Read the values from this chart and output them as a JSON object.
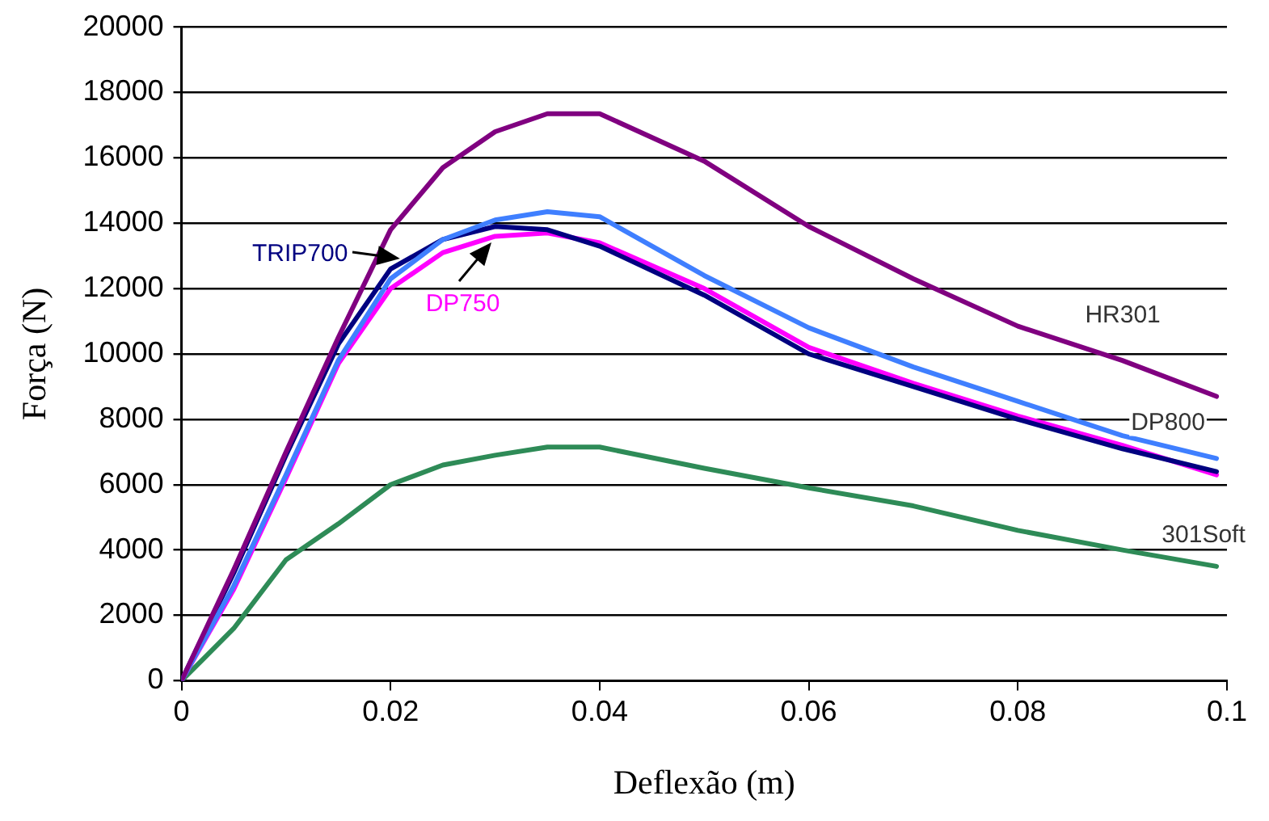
{
  "chart_data": {
    "type": "line",
    "xlabel": "Deflexão (m)",
    "ylabel": "Força (N)",
    "x": [
      0,
      0.005,
      0.01,
      0.015,
      0.02,
      0.025,
      0.03,
      0.035,
      0.04,
      0.05,
      0.06,
      0.07,
      0.08,
      0.09,
      0.099
    ],
    "series": [
      {
        "name": "HR301",
        "color": "#800080",
        "values": [
          0,
          3400,
          7000,
          10500,
          13800,
          15700,
          16800,
          17350,
          17350,
          15900,
          13900,
          12300,
          10850,
          9800,
          8700
        ]
      },
      {
        "name": "DP800",
        "color": "#3f7fff",
        "values": [
          0,
          2900,
          6300,
          9800,
          12300,
          13500,
          14100,
          14350,
          14200,
          12400,
          10800,
          9600,
          8550,
          7500,
          6800
        ]
      },
      {
        "name": "TRIP700",
        "color": "#000080",
        "values": [
          0,
          3300,
          6900,
          10300,
          12600,
          13500,
          13900,
          13800,
          13300,
          11800,
          10000,
          9000,
          8000,
          7100,
          6400
        ]
      },
      {
        "name": "DP750",
        "color": "#ff00ff",
        "values": [
          0,
          2800,
          6200,
          9700,
          12000,
          13100,
          13600,
          13700,
          13400,
          12000,
          10200,
          9100,
          8100,
          7200,
          6300
        ]
      },
      {
        "name": "301Soft",
        "color": "#2e8b57",
        "values": [
          0,
          1600,
          3700,
          4800,
          6000,
          6600,
          6900,
          7150,
          7150,
          6500,
          5900,
          5350,
          4600,
          4000,
          3500
        ]
      }
    ],
    "xlim": [
      0,
      0.1
    ],
    "xticks": [
      0,
      0.02,
      0.04,
      0.06,
      0.08,
      0.1
    ],
    "ylim": [
      0,
      20000
    ],
    "yticks": [
      0,
      2000,
      4000,
      6000,
      8000,
      10000,
      12000,
      14000,
      16000,
      18000,
      20000
    ],
    "grid": "y",
    "legend": false,
    "marker": "none",
    "line_style": "solid"
  }
}
